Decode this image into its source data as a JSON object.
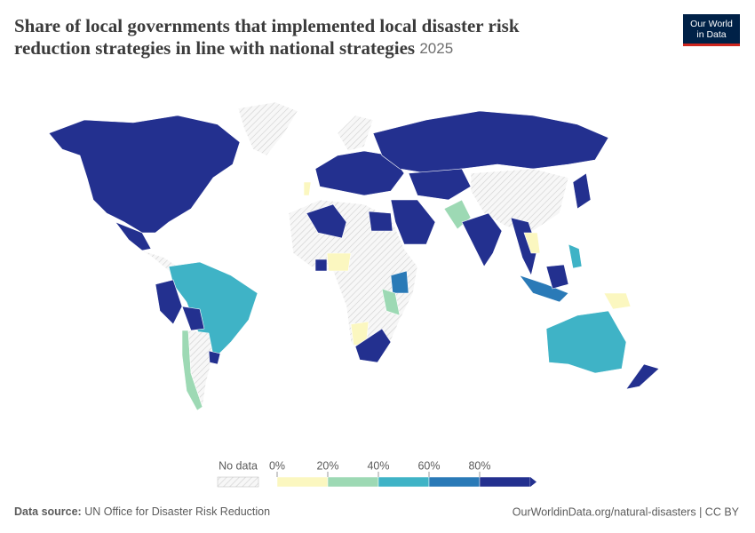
{
  "title_line1": "Share of local governments that implemented local disaster risk",
  "title_line2": "reduction strategies in line with national strategies",
  "year": "2025",
  "logo": [
    "Our World",
    "in Data"
  ],
  "legend": {
    "no_data": "No data",
    "lim": [
      0,
      100
    ],
    "ticks": [
      {
        "value": 0,
        "label": "0%"
      },
      {
        "value": 20,
        "label": "20%"
      },
      {
        "value": 40,
        "label": "40%"
      },
      {
        "value": 60,
        "label": "60%"
      },
      {
        "value": 80,
        "label": "80%"
      }
    ],
    "colors": [
      "#fbf7c0",
      "#9dd9b4",
      "#3fb3c6",
      "#2a7ab7",
      "#23308f"
    ]
  },
  "footer": {
    "source_label": "Data source:",
    "source": "UN Office for Disaster Risk Reduction",
    "url": "OurWorldinData.org/natural-disasters | CC BY"
  }
}
